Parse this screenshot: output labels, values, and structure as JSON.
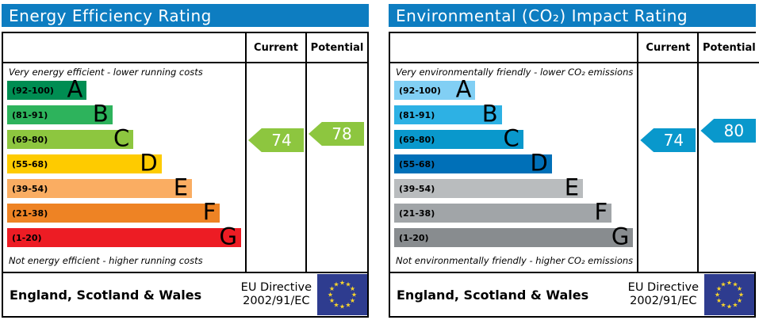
{
  "colors": {
    "header_blue": "#0d7dc1",
    "energy_arrow": "#8dc63f",
    "co2_arrow": "#0998cc",
    "flag_blue": "#2e3c8f",
    "star_yellow": "#f6d32d"
  },
  "panels": [
    {
      "title": "Energy Efficiency Rating",
      "header": {
        "current": "Current",
        "potential": "Potential"
      },
      "top_note": "Very energy efficient - lower running costs",
      "bottom_note": "Not energy efficient - higher running costs",
      "bands": [
        {
          "label": "A",
          "range": "(92-100)",
          "min": 92,
          "max": 100,
          "color": "#008d52",
          "width_pct": 34
        },
        {
          "label": "B",
          "range": "(81-91)",
          "min": 81,
          "max": 91,
          "color": "#2db35c",
          "width_pct": 45
        },
        {
          "label": "C",
          "range": "(69-80)",
          "min": 69,
          "max": 80,
          "color": "#8dc63f",
          "width_pct": 54
        },
        {
          "label": "D",
          "range": "(55-68)",
          "min": 55,
          "max": 68,
          "color": "#fecb00",
          "width_pct": 66
        },
        {
          "label": "E",
          "range": "(39-54)",
          "min": 39,
          "max": 54,
          "color": "#faad62",
          "width_pct": 79
        },
        {
          "label": "F",
          "range": "(21-38)",
          "min": 21,
          "max": 38,
          "color": "#ee8324",
          "width_pct": 91
        },
        {
          "label": "G",
          "range": "(1-20)",
          "min": 1,
          "max": 20,
          "color": "#ed1c24",
          "width_pct": 100
        }
      ],
      "current": {
        "value": 74,
        "color": "#8dc63f"
      },
      "potential": {
        "value": 78,
        "color": "#8dc63f"
      },
      "footer": {
        "region": "England, Scotland & Wales",
        "directive_line1": "EU Directive",
        "directive_line2": "2002/91/EC"
      }
    },
    {
      "title": "Environmental (CO₂) Impact Rating",
      "header": {
        "current": "Current",
        "potential": "Potential"
      },
      "top_note": "Very environmentally friendly - lower CO₂ emissions",
      "bottom_note": "Not environmentally friendly - higher CO₂ emissions",
      "bands": [
        {
          "label": "A",
          "range": "(92-100)",
          "min": 92,
          "max": 100,
          "color": "#81cff4",
          "width_pct": 34
        },
        {
          "label": "B",
          "range": "(81-91)",
          "min": 81,
          "max": 91,
          "color": "#2db1e4",
          "width_pct": 45
        },
        {
          "label": "C",
          "range": "(69-80)",
          "min": 69,
          "max": 80,
          "color": "#0998cc",
          "width_pct": 54
        },
        {
          "label": "D",
          "range": "(55-68)",
          "min": 55,
          "max": 68,
          "color": "#0070b8",
          "width_pct": 66
        },
        {
          "label": "E",
          "range": "(39-54)",
          "min": 39,
          "max": 54,
          "color": "#b9bcbe",
          "width_pct": 79
        },
        {
          "label": "F",
          "range": "(21-38)",
          "min": 21,
          "max": 38,
          "color": "#a1a5a8",
          "width_pct": 91
        },
        {
          "label": "G",
          "range": "(1-20)",
          "min": 1,
          "max": 20,
          "color": "#888c8f",
          "width_pct": 100
        }
      ],
      "current": {
        "value": 74,
        "color": "#0998cc"
      },
      "potential": {
        "value": 80,
        "color": "#0998cc"
      },
      "footer": {
        "region": "England, Scotland & Wales",
        "directive_line1": "EU Directive",
        "directive_line2": "2002/91/EC"
      }
    }
  ],
  "chart_data": [
    {
      "type": "bar",
      "title": "Energy Efficiency Rating",
      "orientation": "horizontal",
      "categories": [
        "A (92-100)",
        "B (81-91)",
        "C (69-80)",
        "D (55-68)",
        "E (39-54)",
        "F (21-38)",
        "G (1-20)"
      ],
      "values": [
        34,
        45,
        54,
        66,
        79,
        91,
        100
      ],
      "band_colors": [
        "#008d52",
        "#2db35c",
        "#8dc63f",
        "#fecb00",
        "#faad62",
        "#ee8324",
        "#ed1c24"
      ],
      "current_rating": 74,
      "potential_rating": 78,
      "top_note": "Very energy efficient - lower running costs",
      "bottom_note": "Not energy efficient - higher running costs",
      "footer": "England, Scotland & Wales — EU Directive 2002/91/EC"
    },
    {
      "type": "bar",
      "title": "Environmental (CO₂) Impact Rating",
      "orientation": "horizontal",
      "categories": [
        "A (92-100)",
        "B (81-91)",
        "C (69-80)",
        "D (55-68)",
        "E (39-54)",
        "F (21-38)",
        "G (1-20)"
      ],
      "values": [
        34,
        45,
        54,
        66,
        79,
        91,
        100
      ],
      "band_colors": [
        "#81cff4",
        "#2db1e4",
        "#0998cc",
        "#0070b8",
        "#b9bcbe",
        "#a1a5a8",
        "#888c8f"
      ],
      "current_rating": 74,
      "potential_rating": 80,
      "top_note": "Very environmentally friendly - lower CO₂ emissions",
      "bottom_note": "Not environmentally friendly - higher CO₂ emissions",
      "footer": "England, Scotland & Wales — EU Directive 2002/91/EC"
    }
  ]
}
